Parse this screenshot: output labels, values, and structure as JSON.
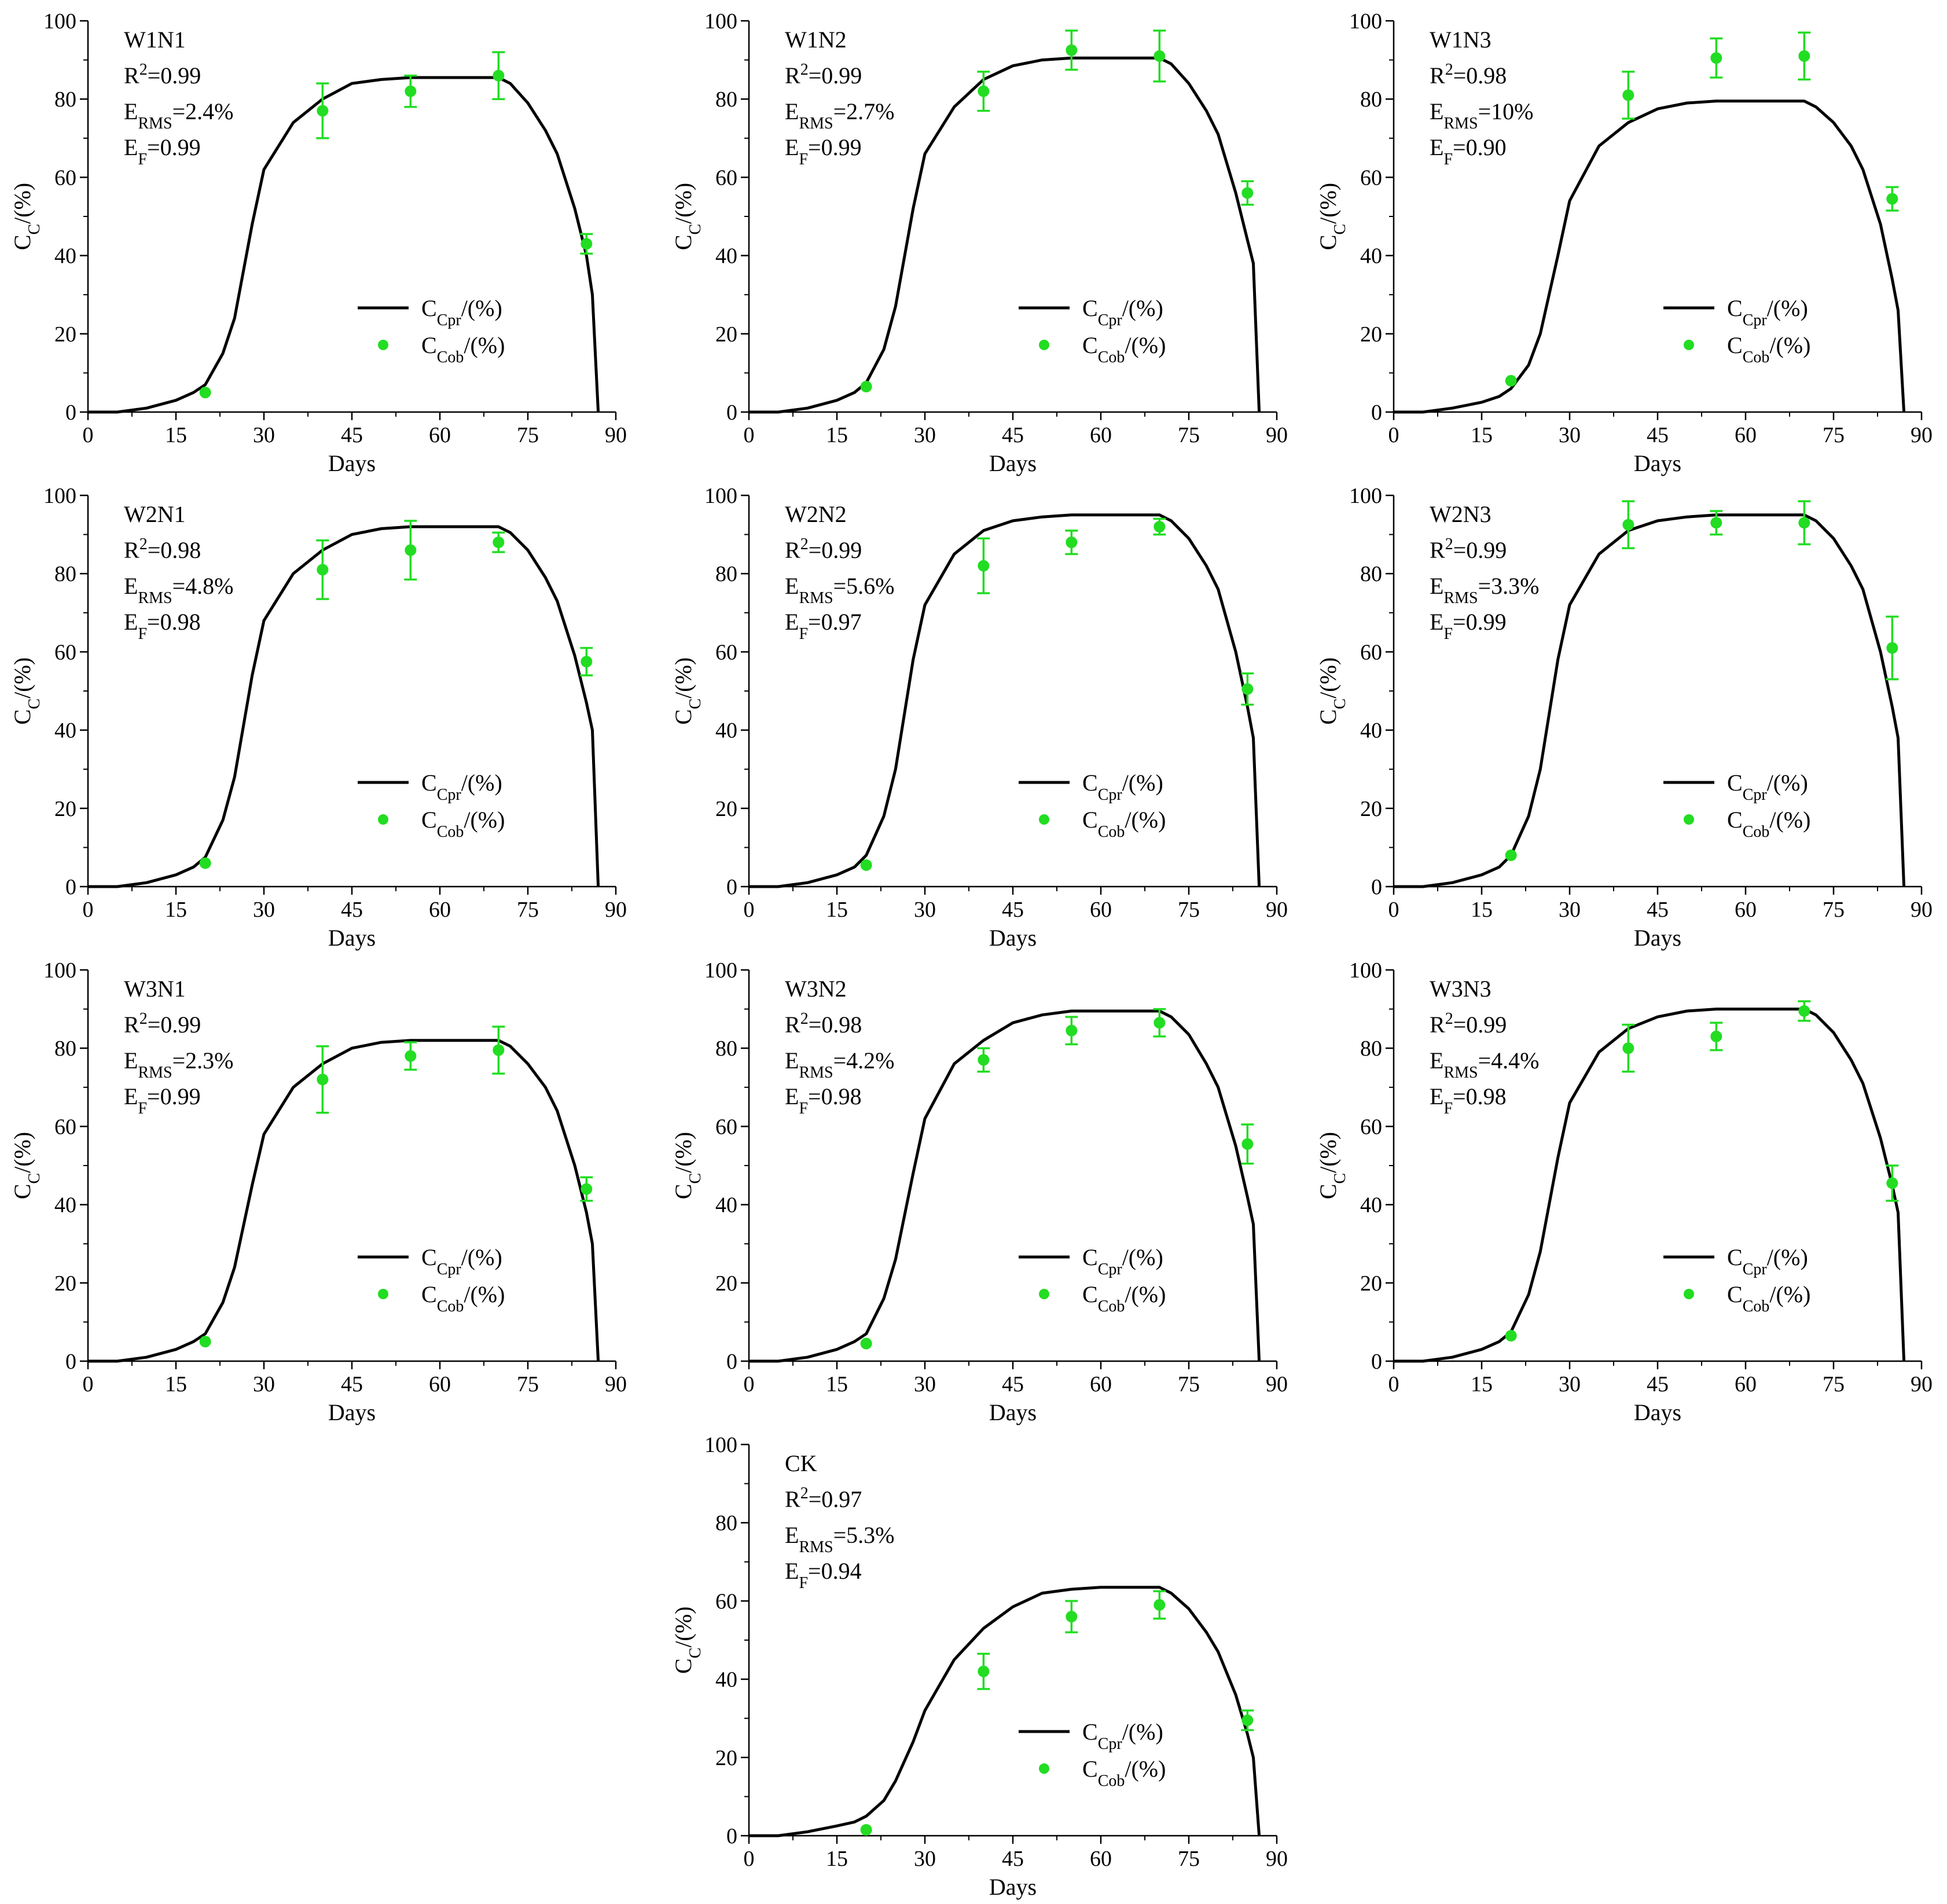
{
  "figure": {
    "x_axis_label": "Days",
    "y_axis_label": {
      "main": "C",
      "sub": "C",
      "tail": "/(%)"
    },
    "legend": [
      {
        "key": "pred",
        "main": "C",
        "sub": "Cpr",
        "tail": "/(%)",
        "marker": "line"
      },
      {
        "key": "obs",
        "main": "C",
        "sub": "Cob",
        "tail": "/(%)",
        "marker": "point"
      }
    ],
    "x_ticks": [
      "0",
      "15",
      "30",
      "45",
      "60",
      "75",
      "90"
    ],
    "y_ticks": [
      "0",
      "20",
      "40",
      "60",
      "80",
      "100"
    ],
    "stat_labels": {
      "r2_main": "R",
      "r2_sup": "2",
      "rms_main": "E",
      "rms_sub": "RMS",
      "ef_main": "E",
      "ef_sub": "F"
    }
  },
  "chart_data": [
    {
      "type": "line",
      "panel": "W1N1",
      "xlim": [
        0,
        90
      ],
      "ylim": [
        0,
        100
      ],
      "grid": false,
      "legend_position": "bottom-right",
      "r2": "=0.99",
      "rms": "=2.4%",
      "ef": "=0.99",
      "series": [
        {
          "name": "CCpr/(%)",
          "kind": "line",
          "x": [
            0,
            5,
            10,
            15,
            18,
            20,
            23,
            25,
            28,
            30,
            35,
            40,
            45,
            50,
            55,
            60,
            65,
            70,
            72,
            75,
            78,
            80,
            83,
            85,
            86,
            87
          ],
          "y": [
            0,
            0,
            1,
            3,
            5,
            7,
            15,
            24,
            48,
            62,
            74,
            80,
            84,
            85,
            85.5,
            85.5,
            85.5,
            85.5,
            84,
            79,
            72,
            66,
            52,
            40,
            30,
            0
          ]
        },
        {
          "name": "CCob/(%)",
          "kind": "scatter",
          "x": [
            20,
            40,
            55,
            70,
            85
          ],
          "y": [
            5,
            77,
            82,
            86,
            43
          ],
          "err": [
            0,
            7,
            4,
            6,
            2.5
          ]
        }
      ]
    },
    {
      "type": "line",
      "panel": "W1N2",
      "xlim": [
        0,
        90
      ],
      "ylim": [
        0,
        100
      ],
      "grid": false,
      "legend_position": "bottom-right",
      "r2": "=0.99",
      "rms": "=2.7%",
      "ef": "=0.99",
      "series": [
        {
          "name": "CCpr/(%)",
          "kind": "line",
          "x": [
            0,
            5,
            10,
            15,
            18,
            20,
            23,
            25,
            28,
            30,
            35,
            40,
            45,
            50,
            55,
            60,
            65,
            70,
            72,
            75,
            78,
            80,
            83,
            85,
            86,
            87
          ],
          "y": [
            0,
            0,
            1,
            3,
            5,
            7.5,
            16,
            27,
            52,
            66,
            78,
            85,
            88.5,
            90,
            90.5,
            90.5,
            90.5,
            90.5,
            89,
            84,
            77,
            71,
            56,
            44,
            38,
            0
          ]
        },
        {
          "name": "CCob/(%)",
          "kind": "scatter",
          "x": [
            20,
            40,
            55,
            70,
            85
          ],
          "y": [
            6.5,
            82,
            92.5,
            91,
            56
          ],
          "err": [
            0,
            5,
            5,
            6.5,
            3
          ]
        }
      ]
    },
    {
      "type": "line",
      "panel": "W1N3",
      "xlim": [
        0,
        90
      ],
      "ylim": [
        0,
        100
      ],
      "grid": false,
      "legend_position": "bottom-right",
      "r2": "=0.98",
      "rms": "=10%",
      "ef": "=0.90",
      "series": [
        {
          "name": "CCpr/(%)",
          "kind": "line",
          "x": [
            0,
            5,
            10,
            15,
            18,
            20,
            23,
            25,
            28,
            30,
            35,
            40,
            45,
            50,
            55,
            60,
            65,
            70,
            72,
            75,
            78,
            80,
            83,
            85,
            86,
            87
          ],
          "y": [
            0,
            0,
            1,
            2.5,
            4,
            6,
            12,
            20,
            40,
            54,
            68,
            74,
            77.5,
            79,
            79.5,
            79.5,
            79.5,
            79.5,
            78,
            74,
            68,
            62,
            48,
            34,
            26,
            0
          ]
        },
        {
          "name": "CCob/(%)",
          "kind": "scatter",
          "x": [
            20,
            40,
            55,
            70,
            85
          ],
          "y": [
            8,
            81,
            90.5,
            91,
            54.5
          ],
          "err": [
            0,
            6,
            5,
            6,
            3
          ]
        }
      ]
    },
    {
      "type": "line",
      "panel": "W2N1",
      "xlim": [
        0,
        90
      ],
      "ylim": [
        0,
        100
      ],
      "grid": false,
      "legend_position": "bottom-right",
      "r2": "=0.98",
      "rms": "=4.8%",
      "ef": "=0.98",
      "series": [
        {
          "name": "CCpr/(%)",
          "kind": "line",
          "x": [
            0,
            5,
            10,
            15,
            18,
            20,
            23,
            25,
            28,
            30,
            35,
            40,
            45,
            50,
            55,
            60,
            65,
            70,
            72,
            75,
            78,
            80,
            83,
            85,
            86,
            87
          ],
          "y": [
            0,
            0,
            1,
            3,
            5,
            7.5,
            17,
            28,
            54,
            68,
            80,
            86,
            90,
            91.5,
            92,
            92,
            92,
            92,
            90.5,
            86,
            79,
            73,
            59,
            47,
            40,
            0
          ]
        },
        {
          "name": "CCob/(%)",
          "kind": "scatter",
          "x": [
            20,
            40,
            55,
            70,
            85
          ],
          "y": [
            6,
            81,
            86,
            88,
            57.5
          ],
          "err": [
            0,
            7.5,
            7.5,
            2.5,
            3.5
          ]
        }
      ]
    },
    {
      "type": "line",
      "panel": "W2N2",
      "xlim": [
        0,
        90
      ],
      "ylim": [
        0,
        100
      ],
      "grid": false,
      "legend_position": "bottom-right",
      "r2": "=0.99",
      "rms": "=5.6%",
      "ef": "=0.97",
      "series": [
        {
          "name": "CCpr/(%)",
          "kind": "line",
          "x": [
            0,
            5,
            10,
            15,
            18,
            20,
            23,
            25,
            28,
            30,
            35,
            40,
            45,
            50,
            55,
            60,
            65,
            70,
            72,
            75,
            78,
            80,
            83,
            85,
            86,
            87
          ],
          "y": [
            0,
            0,
            1,
            3,
            5,
            8,
            18,
            30,
            58,
            72,
            85,
            91,
            93.5,
            94.5,
            95,
            95,
            95,
            95,
            93.5,
            89,
            82,
            76,
            60,
            46,
            38,
            0
          ]
        },
        {
          "name": "CCob/(%)",
          "kind": "scatter",
          "x": [
            20,
            40,
            55,
            70,
            85
          ],
          "y": [
            5.5,
            82,
            88,
            92,
            50.5
          ],
          "err": [
            0,
            7,
            3,
            2,
            4
          ]
        }
      ]
    },
    {
      "type": "line",
      "panel": "W2N3",
      "xlim": [
        0,
        90
      ],
      "ylim": [
        0,
        100
      ],
      "grid": false,
      "legend_position": "bottom-right",
      "r2": "=0.99",
      "rms": "=3.3%",
      "ef": "=0.99",
      "series": [
        {
          "name": "CCpr/(%)",
          "kind": "line",
          "x": [
            0,
            5,
            10,
            15,
            18,
            20,
            23,
            25,
            28,
            30,
            35,
            40,
            45,
            50,
            55,
            60,
            65,
            70,
            72,
            75,
            78,
            80,
            83,
            85,
            86,
            87
          ],
          "y": [
            0,
            0,
            1,
            3,
            5,
            8,
            18,
            30,
            58,
            72,
            85,
            91,
            93.5,
            94.5,
            95,
            95,
            95,
            95,
            93.5,
            89,
            82,
            76,
            60,
            46,
            38,
            0
          ]
        },
        {
          "name": "CCob/(%)",
          "kind": "scatter",
          "x": [
            20,
            40,
            55,
            70,
            85
          ],
          "y": [
            8,
            92.5,
            93,
            93,
            61
          ],
          "err": [
            0,
            6,
            3,
            5.5,
            8
          ]
        }
      ]
    },
    {
      "type": "line",
      "panel": "W3N1",
      "xlim": [
        0,
        90
      ],
      "ylim": [
        0,
        100
      ],
      "grid": false,
      "legend_position": "bottom-right",
      "r2": "=0.99",
      "rms": "=2.3%",
      "ef": "=0.99",
      "series": [
        {
          "name": "CCpr/(%)",
          "kind": "line",
          "x": [
            0,
            5,
            10,
            15,
            18,
            20,
            23,
            25,
            28,
            30,
            35,
            40,
            45,
            50,
            55,
            60,
            65,
            70,
            72,
            75,
            78,
            80,
            83,
            85,
            86,
            87
          ],
          "y": [
            0,
            0,
            1,
            3,
            5,
            7,
            15,
            24,
            45,
            58,
            70,
            76,
            80,
            81.5,
            82,
            82,
            82,
            82,
            80.5,
            76,
            70,
            64,
            50,
            38,
            30,
            0
          ]
        },
        {
          "name": "CCob/(%)",
          "kind": "scatter",
          "x": [
            20,
            40,
            55,
            70,
            85
          ],
          "y": [
            5,
            72,
            78,
            79.5,
            44
          ],
          "err": [
            0,
            8.5,
            3.5,
            6,
            3
          ]
        }
      ]
    },
    {
      "type": "line",
      "panel": "W3N2",
      "xlim": [
        0,
        90
      ],
      "ylim": [
        0,
        100
      ],
      "grid": false,
      "legend_position": "bottom-right",
      "r2": "=0.98",
      "rms": "=4.2%",
      "ef": "=0.98",
      "series": [
        {
          "name": "CCpr/(%)",
          "kind": "line",
          "x": [
            0,
            5,
            10,
            15,
            18,
            20,
            23,
            25,
            28,
            30,
            35,
            40,
            45,
            50,
            55,
            60,
            65,
            70,
            72,
            75,
            78,
            80,
            83,
            85,
            86,
            87
          ],
          "y": [
            0,
            0,
            1,
            3,
            5,
            7,
            16,
            26,
            48,
            62,
            76,
            82,
            86.5,
            88.5,
            89.5,
            89.5,
            89.5,
            89.5,
            88,
            83.5,
            76,
            70,
            55,
            42,
            35,
            0
          ]
        },
        {
          "name": "CCob/(%)",
          "kind": "scatter",
          "x": [
            20,
            40,
            55,
            70,
            85
          ],
          "y": [
            4.5,
            77,
            84.5,
            86.5,
            55.5
          ],
          "err": [
            0,
            3,
            3.5,
            3.5,
            5
          ]
        }
      ]
    },
    {
      "type": "line",
      "panel": "W3N3",
      "xlim": [
        0,
        90
      ],
      "ylim": [
        0,
        100
      ],
      "grid": false,
      "legend_position": "bottom-right",
      "r2": "=0.99",
      "rms": "=4.4%",
      "ef": "=0.98",
      "series": [
        {
          "name": "CCpr/(%)",
          "kind": "line",
          "x": [
            0,
            5,
            10,
            15,
            18,
            20,
            23,
            25,
            28,
            30,
            35,
            40,
            45,
            50,
            55,
            60,
            65,
            70,
            72,
            75,
            78,
            80,
            83,
            85,
            86,
            87
          ],
          "y": [
            0,
            0,
            1,
            3,
            5,
            7.5,
            17,
            28,
            52,
            66,
            79,
            85,
            88,
            89.5,
            90,
            90,
            90,
            90,
            88.5,
            84,
            77,
            71,
            57,
            45,
            38,
            0
          ]
        },
        {
          "name": "CCob/(%)",
          "kind": "scatter",
          "x": [
            20,
            40,
            55,
            70,
            85
          ],
          "y": [
            6.5,
            80,
            83,
            89.5,
            45.5
          ],
          "err": [
            0,
            6,
            3.5,
            2.5,
            4.5
          ]
        }
      ]
    },
    {
      "type": "line",
      "panel": "CK",
      "xlim": [
        0,
        90
      ],
      "ylim": [
        0,
        100
      ],
      "grid": false,
      "legend_position": "bottom-right",
      "r2": "=0.97",
      "rms": "=5.3%",
      "ef": "=0.94",
      "series": [
        {
          "name": "CCpr/(%)",
          "kind": "line",
          "x": [
            0,
            5,
            10,
            15,
            18,
            20,
            23,
            25,
            28,
            30,
            35,
            40,
            45,
            50,
            55,
            60,
            65,
            70,
            72,
            75,
            78,
            80,
            83,
            85,
            86,
            87
          ],
          "y": [
            0,
            0,
            1,
            2.5,
            3.5,
            5,
            9,
            14,
            24,
            32,
            45,
            53,
            58.5,
            62,
            63,
            63.5,
            63.5,
            63.5,
            62,
            58,
            52,
            47,
            36,
            26,
            20,
            0
          ]
        },
        {
          "name": "CCob/(%)",
          "kind": "scatter",
          "x": [
            20,
            40,
            55,
            70,
            85
          ],
          "y": [
            1.5,
            42,
            56,
            59,
            29.5
          ],
          "err": [
            0,
            4.5,
            4,
            3.5,
            2.5
          ]
        }
      ]
    }
  ]
}
